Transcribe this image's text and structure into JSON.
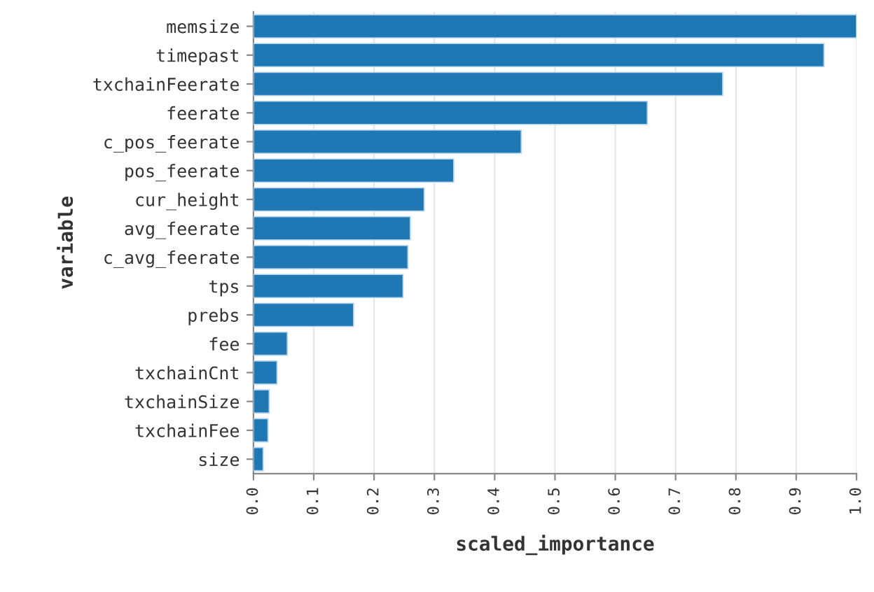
{
  "chart_data": {
    "type": "bar",
    "orientation": "horizontal",
    "xlabel": "scaled_importance",
    "ylabel": "variable",
    "categories": [
      "memsize",
      "timepast",
      "txchainFeerate",
      "feerate",
      "c_pos_feerate",
      "pos_feerate",
      "cur_height",
      "avg_feerate",
      "c_avg_feerate",
      "tps",
      "prebs",
      "fee",
      "txchainCnt",
      "txchainSize",
      "txchainFee",
      "size"
    ],
    "values": [
      1.0,
      0.946,
      0.778,
      0.653,
      0.444,
      0.332,
      0.283,
      0.26,
      0.256,
      0.248,
      0.166,
      0.056,
      0.039,
      0.026,
      0.024,
      0.016
    ],
    "color": "#1f77b4",
    "xlim": [
      0,
      1.0
    ],
    "xticks": [
      {
        "value": 0,
        "label": "0.0"
      },
      0.1,
      0.2,
      0.3,
      0.4,
      0.5,
      0.6,
      0.7,
      0.8,
      0.9,
      {
        "value": 1.0,
        "label": "1.0"
      }
    ],
    "grid": "x"
  }
}
